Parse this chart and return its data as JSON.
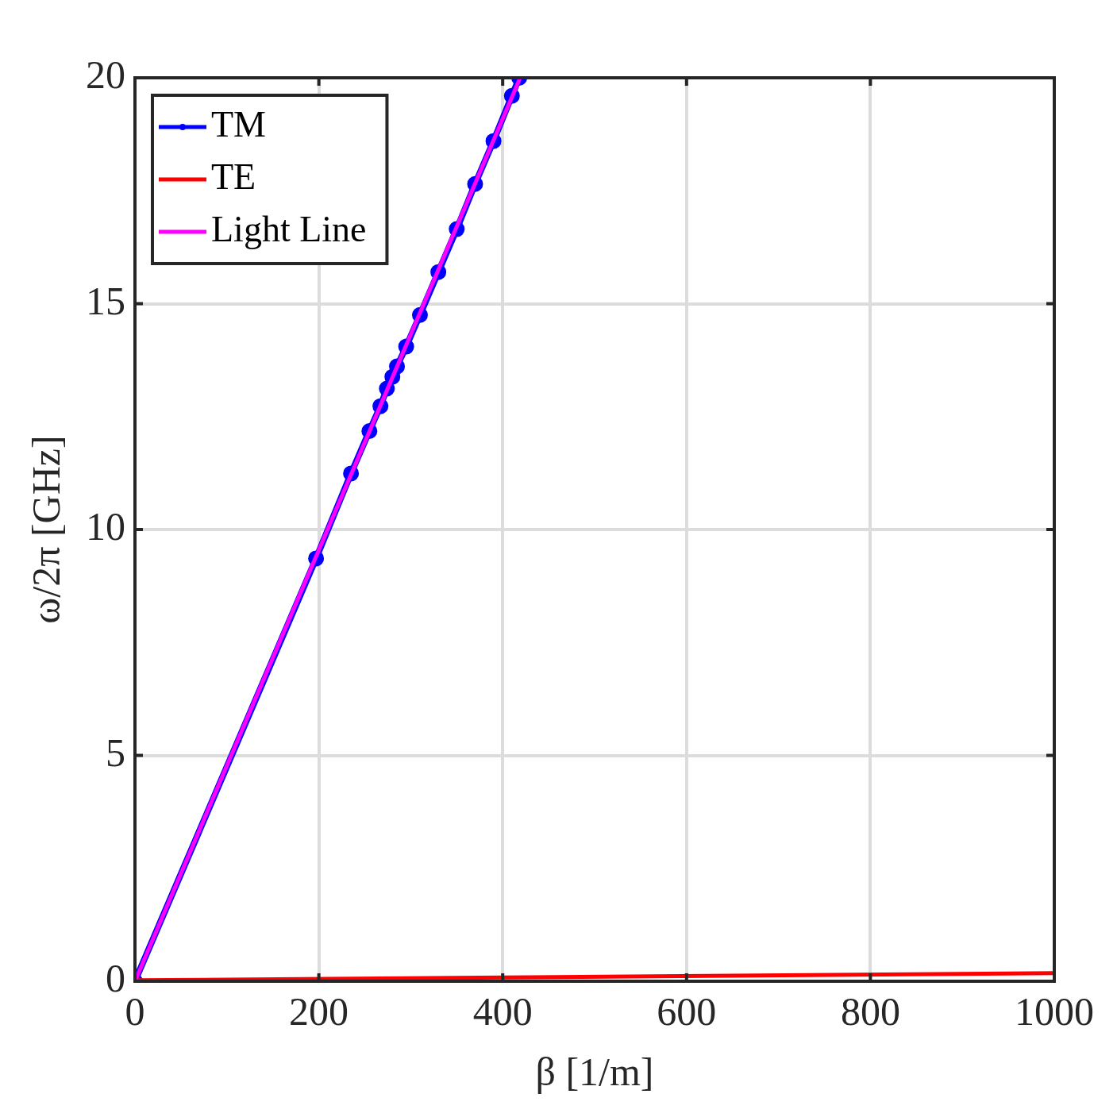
{
  "chart_data": {
    "type": "line",
    "xlabel": "β [1/m]",
    "ylabel": "ω/2π [GHz]",
    "xlim": [
      0,
      1000
    ],
    "ylim": [
      0,
      20
    ],
    "xticks": [
      0,
      200,
      400,
      600,
      800,
      1000
    ],
    "yticks": [
      0,
      5,
      10,
      15,
      20
    ],
    "grid": true,
    "legend": "top left",
    "line_style": "solid",
    "series": [
      {
        "name": "TM",
        "color": "#0000ff",
        "marker": "circle",
        "x": [
          0,
          197,
          235,
          255,
          267,
          274,
          280,
          285,
          295,
          310,
          330,
          350,
          370,
          390,
          410,
          418
        ],
        "values": [
          0,
          9.36,
          11.24,
          12.18,
          12.73,
          13.12,
          13.38,
          13.61,
          14.05,
          14.75,
          15.7,
          16.65,
          17.65,
          18.6,
          19.6,
          20
        ]
      },
      {
        "name": "TE",
        "color": "#ff0000",
        "marker": "none",
        "x": [
          0,
          1000
        ],
        "values": [
          0.02,
          0.18
        ]
      },
      {
        "name": "Light Line",
        "color": "#ff00ff",
        "marker": "none",
        "x": [
          0,
          419
        ],
        "values": [
          0,
          20
        ]
      }
    ]
  }
}
